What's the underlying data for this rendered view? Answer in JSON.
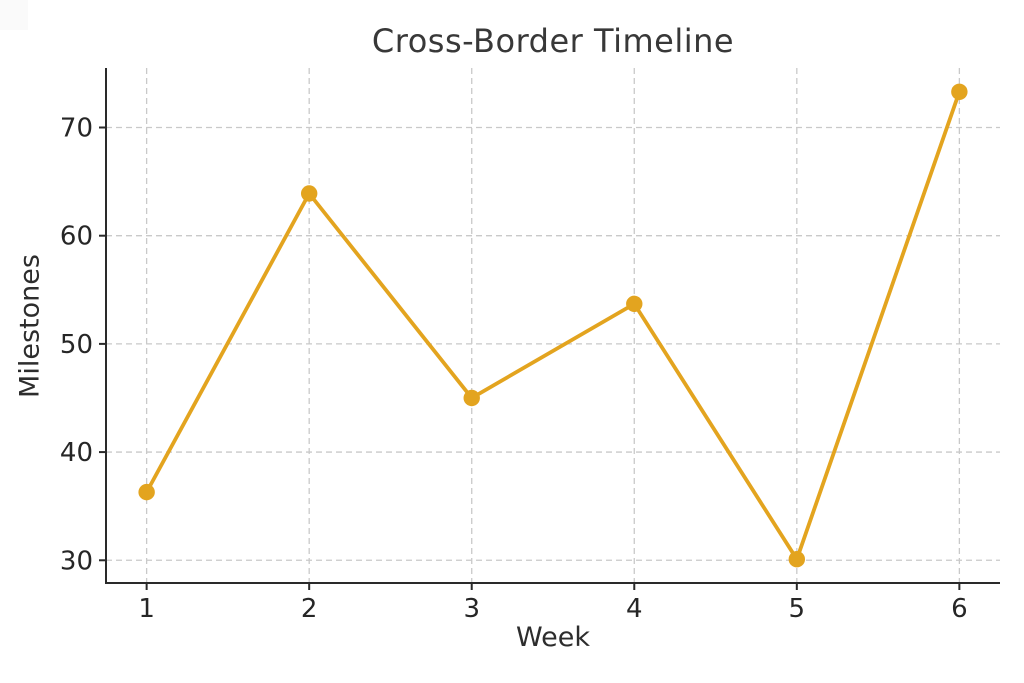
{
  "page": {
    "background": "#ffffff",
    "corner_artifact_color": "#fafafa"
  },
  "chart_data": {
    "type": "line",
    "title": "Cross-Border Timeline",
    "xlabel": "Week",
    "ylabel": "Milestones",
    "x": [
      1,
      2,
      3,
      4,
      5,
      6
    ],
    "series": [
      {
        "name": "Milestones",
        "values": [
          36.3,
          63.9,
          45.0,
          53.7,
          30.1,
          73.3
        ]
      }
    ],
    "xticks": [
      "1",
      "2",
      "3",
      "4",
      "5",
      "6"
    ],
    "xtick_values": [
      1,
      2,
      3,
      4,
      5,
      6
    ],
    "yticks": [
      "30",
      "40",
      "50",
      "60",
      "70"
    ],
    "ytick_values": [
      30,
      40,
      50,
      60,
      70
    ],
    "xlim": [
      0.75,
      6.25
    ],
    "ylim": [
      27.9,
      75.5
    ],
    "grid": true,
    "grid_style": "dashed",
    "legend_position": "none",
    "colors": {
      "line": "#E3A41F",
      "marker": "#E3A41F",
      "grid": "#c9c9c9",
      "axis": "#2a2a2a",
      "tick_text": "#262626",
      "title_text": "#383838"
    },
    "line_width": 3.8,
    "marker_radius": 8.2
  }
}
